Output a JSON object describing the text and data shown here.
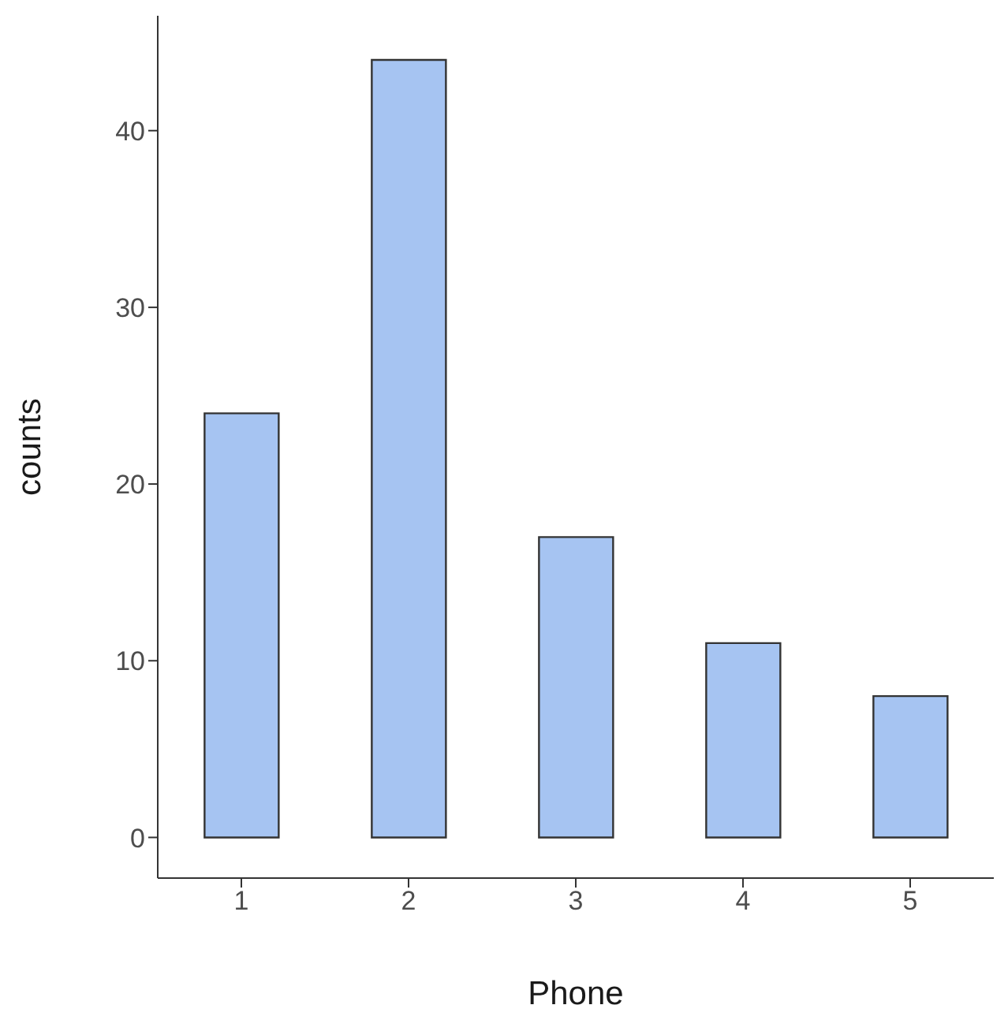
{
  "chart_data": {
    "type": "bar",
    "xlabel": "Phone",
    "ylabel": "counts",
    "categories": [
      "1",
      "2",
      "3",
      "4",
      "5"
    ],
    "values": [
      24,
      44,
      17,
      11,
      8
    ],
    "color": "#a6c4f2",
    "ylim": [
      -2.3,
      46.5
    ],
    "yticks": [
      0,
      10,
      20,
      30,
      40
    ],
    "grid": false,
    "legend": false
  }
}
